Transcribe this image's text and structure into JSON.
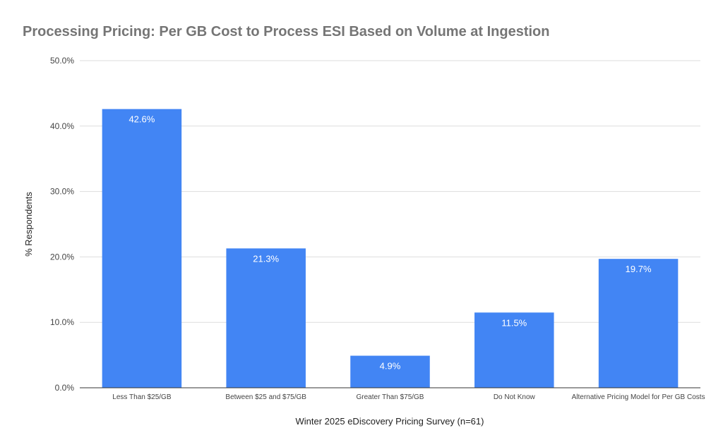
{
  "chart_data": {
    "type": "bar",
    "title": "Processing Pricing: Per GB Cost to Process ESI Based on Volume at Ingestion",
    "xlabel": "Winter 2025 eDiscovery Pricing Survey (n=61)",
    "ylabel": "% Respondents",
    "categories": [
      "Less Than $25/GB",
      "Between $25 and $75/GB",
      "Greater Than $75/GB",
      "Do Not Know",
      "Alternative Pricing Model for Per GB Costs"
    ],
    "values": [
      42.6,
      21.3,
      4.9,
      11.5,
      19.7
    ],
    "value_labels": [
      "42.6%",
      "21.3%",
      "4.9%",
      "11.5%",
      "19.7%"
    ],
    "ylim": [
      0,
      50
    ],
    "yticks": [
      0,
      10,
      20,
      30,
      40,
      50
    ],
    "ytick_labels": [
      "0.0%",
      "10.0%",
      "20.0%",
      "30.0%",
      "40.0%",
      "50.0%"
    ],
    "grid": true,
    "legend": "none",
    "colors": {
      "bar": "#4285f4",
      "grid": "#dddddd",
      "axis": "#333333",
      "title": "#757575",
      "text": "#444444",
      "value_label": "#ffffff"
    }
  }
}
